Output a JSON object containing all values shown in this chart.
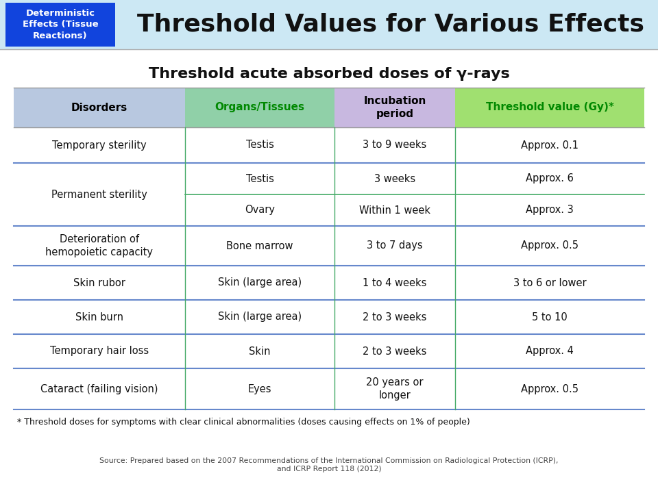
{
  "main_title": "Threshold Values for Various Effects",
  "blue_box_text": "Deterministic\nEffects (Tissue\nReactions)",
  "table_title": "Threshold acute absorbed doses of γ-rays",
  "col_headers": [
    "Disorders",
    "Organs/Tissues",
    "Incubation\nperiod",
    "Threshold value (Gy)*"
  ],
  "header_colors": [
    "#b8c8e0",
    "#90d0a8",
    "#c8b8e0",
    "#a0e070"
  ],
  "header_text_colors": [
    "#000000",
    "#008800",
    "#000000",
    "#008800"
  ],
  "footnote": "* Threshold doses for symptoms with clear clinical abnormalities (doses causing effects on 1% of people)",
  "source_line1": "Source: Prepared based on the 2007 Recommendations of the International Commission on Radiological Protection (ICRP),",
  "source_line2": "and ICRP Report 118 (2012)",
  "bg_top": "#cce8f4",
  "bg_table": "#ffffff",
  "blue_box_bg": "#1144dd",
  "blue_box_text_color": "#ffffff",
  "div_blue": "#6688cc",
  "div_green": "#44aa66",
  "cell_data": [
    [
      0,
      0,
      "Temporary sterility",
      1
    ],
    [
      1,
      0,
      "Permanent sterility",
      2
    ],
    [
      3,
      0,
      "Deterioration of\nhemopoietic capacity",
      1
    ],
    [
      4,
      0,
      "Skin rubor",
      1
    ],
    [
      5,
      0,
      "Skin burn",
      1
    ],
    [
      6,
      0,
      "Temporary hair loss",
      1
    ],
    [
      7,
      0,
      "Cataract (failing vision)",
      1
    ],
    [
      0,
      1,
      "Testis",
      1
    ],
    [
      1,
      1,
      "Testis",
      1
    ],
    [
      2,
      1,
      "Ovary",
      1
    ],
    [
      3,
      1,
      "Bone marrow",
      1
    ],
    [
      4,
      1,
      "Skin (large area)",
      1
    ],
    [
      5,
      1,
      "Skin (large area)",
      1
    ],
    [
      6,
      1,
      "Skin",
      1
    ],
    [
      7,
      1,
      "Eyes",
      1
    ],
    [
      0,
      2,
      "3 to 9 weeks",
      1
    ],
    [
      1,
      2,
      "3 weeks",
      1
    ],
    [
      2,
      2,
      "Within 1 week",
      1
    ],
    [
      3,
      2,
      "3 to 7 days",
      1
    ],
    [
      4,
      2,
      "1 to 4 weeks",
      1
    ],
    [
      5,
      2,
      "2 to 3 weeks",
      1
    ],
    [
      6,
      2,
      "2 to 3 weeks",
      1
    ],
    [
      7,
      2,
      "20 years or\nlonger",
      1
    ],
    [
      0,
      3,
      "Approx. 0.1",
      1
    ],
    [
      1,
      3,
      "Approx. 6",
      1
    ],
    [
      2,
      3,
      "Approx. 3",
      1
    ],
    [
      3,
      3,
      "Approx. 0.5",
      1
    ],
    [
      4,
      3,
      "3 to 6 or lower",
      1
    ],
    [
      5,
      3,
      "5 to 10",
      1
    ],
    [
      6,
      3,
      "Approx. 4",
      1
    ],
    [
      7,
      3,
      "Approx. 0.5",
      1
    ]
  ]
}
